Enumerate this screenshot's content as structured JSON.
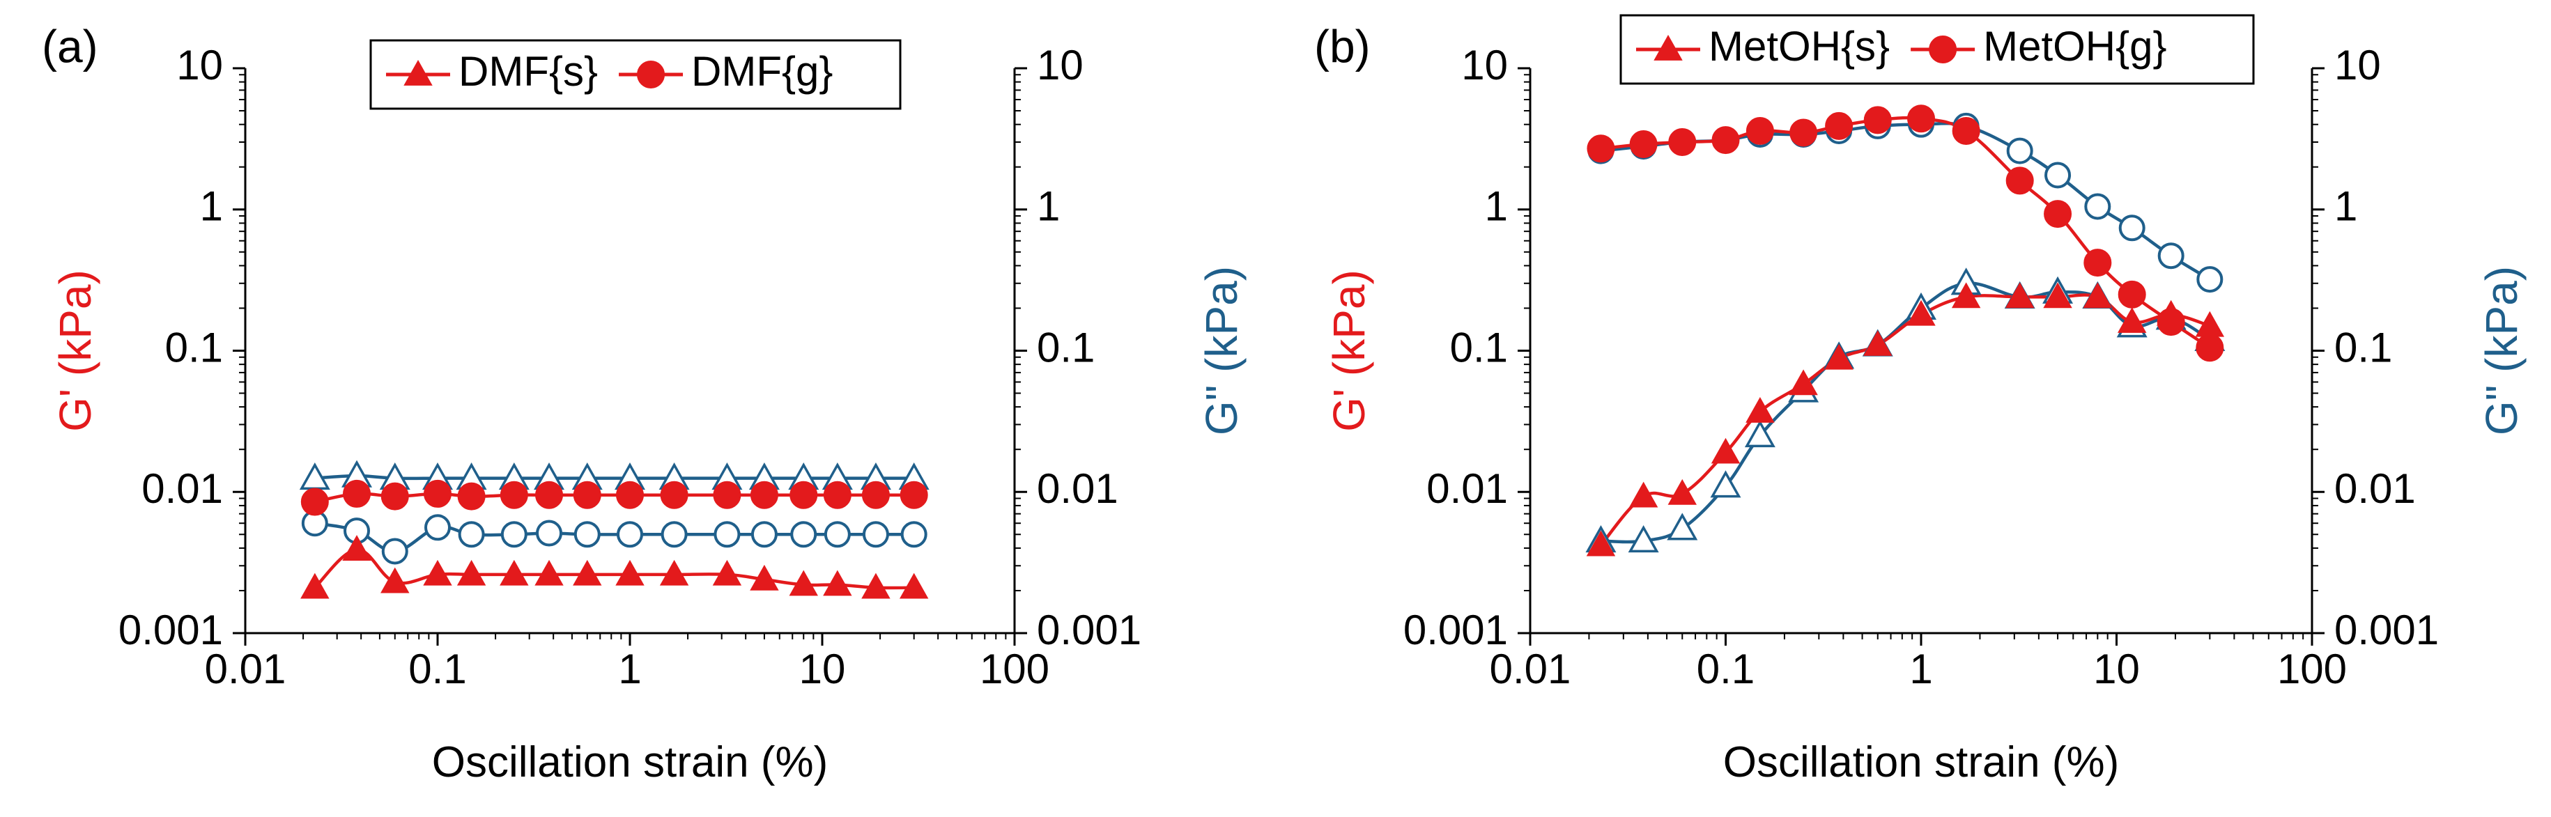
{
  "colors": {
    "red": "#e31a1c",
    "blue": "#1f5f8b",
    "axis": "#000000"
  },
  "panels": [
    {
      "panel_label": "(a)",
      "legend": [
        "DMF{s}",
        "DMF{g}"
      ]
    },
    {
      "panel_label": "(b)",
      "legend": [
        "MetOH{s}",
        "MetOH{g}"
      ]
    }
  ],
  "chart_data": [
    {
      "type": "line",
      "panel": "(a)",
      "title": "",
      "xlabel": "Oscillation strain (%)",
      "ylabel_left": "G' (kPa)",
      "ylabel_right": "G\" (kPa)",
      "xscale": "log",
      "yscale": "log",
      "xlim": [
        0.01,
        100
      ],
      "ylim": [
        0.001,
        10
      ],
      "xticks": [
        "0.01",
        "0.1",
        "1",
        "10",
        "100"
      ],
      "yticks": [
        "0.001",
        "0.01",
        "0.1",
        "1",
        "10"
      ],
      "grid": false,
      "legend_position": "top-center",
      "x": [
        0.023,
        0.038,
        0.06,
        0.1,
        0.15,
        0.25,
        0.38,
        0.6,
        1.0,
        1.7,
        3.2,
        5.0,
        8.0,
        12.0,
        19.0,
        30.0
      ],
      "series": [
        {
          "name": "DMF{s}",
          "axis": "left",
          "quantity": "G'",
          "marker": "filled-triangle",
          "color": "red",
          "values": [
            0.0021,
            0.0039,
            0.0023,
            0.0026,
            0.0026,
            0.0026,
            0.0026,
            0.0026,
            0.0026,
            0.0026,
            0.0026,
            0.0024,
            0.0022,
            0.0022,
            0.0021,
            0.0021
          ]
        },
        {
          "name": "DMF{s}",
          "axis": "right",
          "quantity": "G\"",
          "marker": "open-triangle",
          "color": "blue",
          "values": [
            0.0125,
            0.013,
            0.0125,
            0.0125,
            0.0125,
            0.0125,
            0.0125,
            0.0125,
            0.0125,
            0.0125,
            0.0125,
            0.0125,
            0.0125,
            0.0125,
            0.0125,
            0.0125
          ]
        },
        {
          "name": "DMF{g}",
          "axis": "left",
          "quantity": "G'",
          "marker": "filled-circle",
          "color": "red",
          "values": [
            0.0085,
            0.0097,
            0.0093,
            0.0097,
            0.0093,
            0.0095,
            0.0095,
            0.0095,
            0.0095,
            0.0095,
            0.0095,
            0.0095,
            0.0095,
            0.0095,
            0.0095,
            0.0095
          ]
        },
        {
          "name": "DMF{g}",
          "axis": "right",
          "quantity": "G\"",
          "marker": "open-circle",
          "color": "blue",
          "values": [
            0.006,
            0.0053,
            0.0038,
            0.0056,
            0.005,
            0.005,
            0.0051,
            0.005,
            0.005,
            0.005,
            0.005,
            0.005,
            0.005,
            0.005,
            0.005,
            0.005
          ]
        }
      ]
    },
    {
      "type": "line",
      "panel": "(b)",
      "title": "",
      "xlabel": "Oscillation strain (%)",
      "ylabel_left": "G' (kPa)",
      "ylabel_right": "G\" (kPa)",
      "xscale": "log",
      "yscale": "log",
      "xlim": [
        0.01,
        100
      ],
      "ylim": [
        0.001,
        10
      ],
      "xticks": [
        "0.01",
        "0.1",
        "1",
        "10",
        "100"
      ],
      "yticks": [
        "0.001",
        "0.01",
        "0.1",
        "1",
        "10"
      ],
      "grid": false,
      "legend_position": "top-center",
      "x": [
        0.023,
        0.038,
        0.06,
        0.1,
        0.15,
        0.25,
        0.38,
        0.6,
        1.0,
        1.7,
        3.2,
        5.0,
        8.0,
        12.0,
        19.0,
        30.0
      ],
      "series": [
        {
          "name": "MetOH{s}",
          "axis": "left",
          "quantity": "G'",
          "marker": "filled-triangle",
          "color": "red",
          "values": [
            0.0042,
            0.0093,
            0.0097,
            0.019,
            0.037,
            0.058,
            0.088,
            0.11,
            0.18,
            0.24,
            0.24,
            0.24,
            0.24,
            0.16,
            0.18,
            0.15
          ]
        },
        {
          "name": "MetOH{s}",
          "axis": "right",
          "quantity": "G\"",
          "marker": "open-triangle",
          "color": "blue",
          "values": [
            0.0045,
            0.0045,
            0.0055,
            0.011,
            0.025,
            0.052,
            0.09,
            0.11,
            0.2,
            0.3,
            0.24,
            0.26,
            0.24,
            0.15,
            0.17,
            0.12
          ]
        },
        {
          "name": "MetOH{g}",
          "axis": "left",
          "quantity": "G'",
          "marker": "filled-circle",
          "color": "red",
          "values": [
            2.7,
            2.9,
            3.0,
            3.1,
            3.6,
            3.5,
            3.9,
            4.3,
            4.4,
            3.6,
            1.6,
            0.93,
            0.42,
            0.25,
            0.16,
            0.105
          ]
        },
        {
          "name": "MetOH{g}",
          "axis": "right",
          "quantity": "G\"",
          "marker": "open-circle",
          "color": "blue",
          "values": [
            2.6,
            2.8,
            3.0,
            3.1,
            3.4,
            3.4,
            3.6,
            3.9,
            4.0,
            3.9,
            2.6,
            1.75,
            1.05,
            0.74,
            0.47,
            0.32
          ]
        }
      ]
    }
  ]
}
